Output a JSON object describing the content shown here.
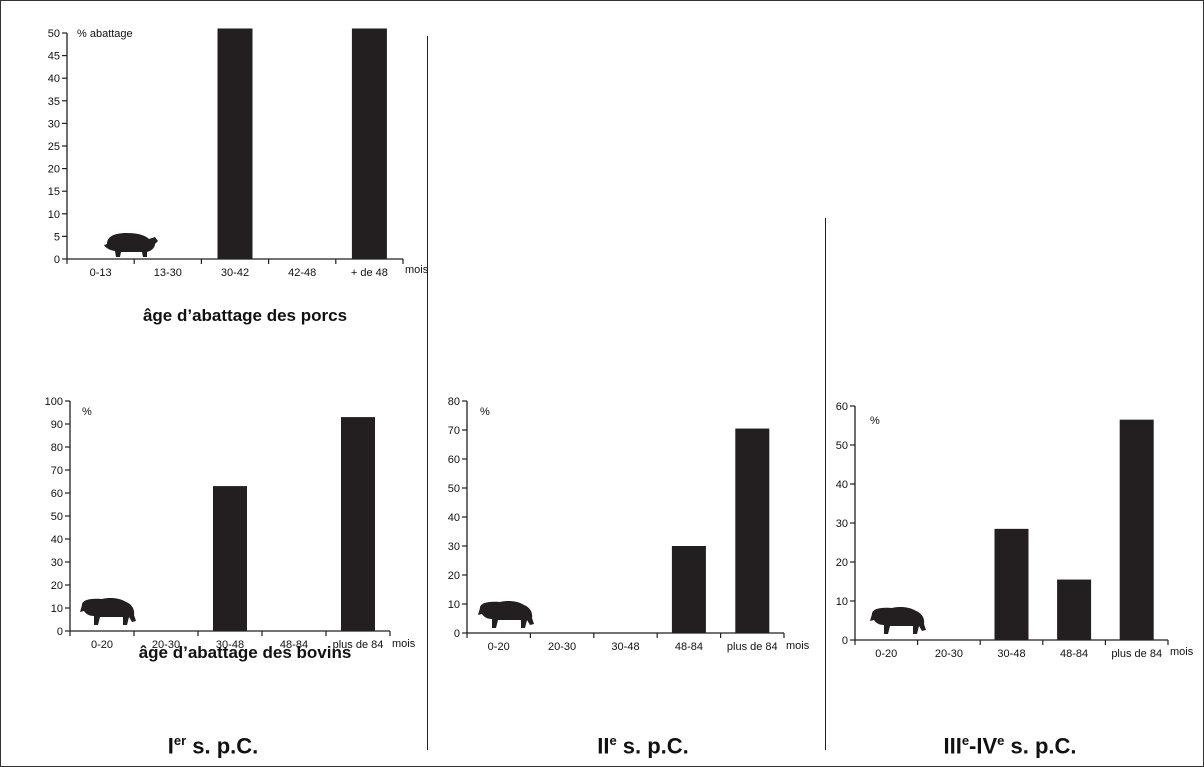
{
  "periods": [
    {
      "label": "I",
      "sup": "er",
      "suffix": " s. p.C."
    },
    {
      "label": "II",
      "sup": "e",
      "suffix": " s. p.C."
    },
    {
      "label": "III",
      "sup": "e",
      "mid": "-IV",
      "sup2": "e",
      "suffix": " s. p.C."
    }
  ],
  "captions": {
    "pigs": "âge d’abattage des porcs",
    "cattle": "âge d’abattage des bovins"
  },
  "colors": {
    "bar": "#231f20",
    "axis": "#231f20"
  },
  "icons": {
    "pig": "pig-silhouette-icon",
    "cattle": "bull-silhouette-icon"
  },
  "chart_data": [
    {
      "id": "pigs-I",
      "type": "bar",
      "ylabel": "% abattage",
      "xunit": "mois",
      "categories": [
        "0-13",
        "13-30",
        "30-42",
        "42-48",
        "+ de 48"
      ],
      "values": [
        0,
        0,
        51,
        0,
        51
      ],
      "ylim": [
        0,
        50
      ],
      "yticks": [
        0,
        5,
        10,
        15,
        20,
        25,
        30,
        35,
        40,
        45,
        50
      ],
      "grid": false
    },
    {
      "id": "cattle-I",
      "type": "bar",
      "ylabel": "%",
      "xunit": "mois",
      "categories": [
        "0-20",
        "20-30",
        "30-48",
        "48-84",
        "plus de 84"
      ],
      "values": [
        0,
        0,
        63,
        0,
        93
      ],
      "ylim": [
        0,
        100
      ],
      "yticks": [
        0,
        10,
        20,
        30,
        40,
        50,
        60,
        70,
        80,
        90,
        100
      ],
      "grid": false
    },
    {
      "id": "cattle-II",
      "type": "bar",
      "ylabel": "%",
      "xunit": "mois",
      "categories": [
        "0-20",
        "20-30",
        "30-48",
        "48-84",
        "plus de 84"
      ],
      "values": [
        0,
        0,
        0,
        30,
        70.5
      ],
      "ylim": [
        0,
        80
      ],
      "yticks": [
        0,
        10,
        20,
        30,
        40,
        50,
        60,
        70,
        80
      ],
      "grid": false
    },
    {
      "id": "cattle-III-IV",
      "type": "bar",
      "ylabel": "%",
      "xunit": "mois",
      "categories": [
        "0-20",
        "20-30",
        "30-48",
        "48-84",
        "plus de 84"
      ],
      "values": [
        0,
        0,
        28.5,
        15.5,
        56.5
      ],
      "ylim": [
        0,
        60
      ],
      "yticks": [
        0,
        10,
        20,
        30,
        40,
        50,
        60
      ],
      "grid": false
    }
  ]
}
